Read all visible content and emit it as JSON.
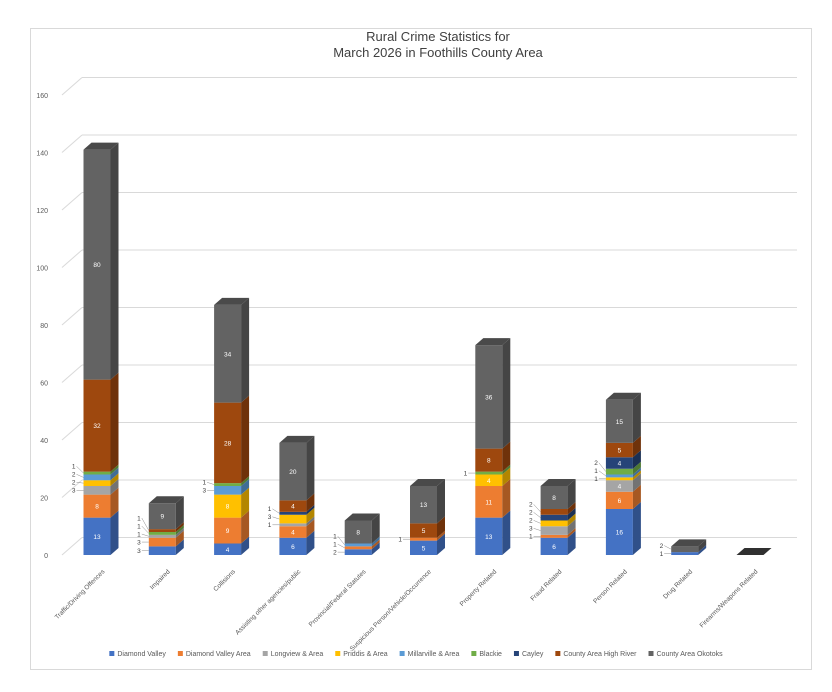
{
  "chart_data": {
    "type": "bar",
    "stacked": true,
    "title": "Rural Crime Statistics for March 2026 in Foothills County Area",
    "title_lines": [
      "Rural Crime Statistics for",
      "March 2026 in Foothills County Area"
    ],
    "xlabel": "",
    "ylabel": "",
    "ylim": [
      0,
      160
    ],
    "yticks": [
      0,
      20,
      40,
      60,
      80,
      100,
      120,
      140,
      160
    ],
    "grid": true,
    "legend_position": "bottom",
    "categories": [
      "Traffic/Driving Offences",
      "Impaired",
      "Collisions",
      "Assisting other agencies/public",
      "Provincial/Federal Statutes",
      "Suspicious Person/Vehicle/Occurrence",
      "Property Related",
      "Fraud Related",
      "Person Related",
      "Drug Related",
      "Firearms/Weapons Related"
    ],
    "series": [
      {
        "name": "Diamond Valley",
        "color": "#4472c4",
        "values": [
          13,
          3,
          4,
          6,
          2,
          5,
          13,
          6,
          16,
          1,
          0
        ]
      },
      {
        "name": "Diamond Valley Area",
        "color": "#ed7d31",
        "values": [
          8,
          3,
          9,
          4,
          1,
          1,
          11,
          1,
          6,
          0,
          0
        ]
      },
      {
        "name": "Longview & Area",
        "color": "#a5a5a5",
        "values": [
          3,
          1,
          0,
          1,
          0,
          0,
          0,
          3,
          4,
          0,
          0
        ]
      },
      {
        "name": "Priddis & Area",
        "color": "#ffc000",
        "values": [
          2,
          0,
          8,
          3,
          0,
          0,
          4,
          2,
          1,
          0,
          0
        ]
      },
      {
        "name": "Millarville & Area",
        "color": "#5b9bd5",
        "values": [
          2,
          0,
          3,
          0,
          1,
          0,
          0,
          0,
          1,
          0,
          0
        ]
      },
      {
        "name": "Blackie",
        "color": "#70ad47",
        "values": [
          1,
          1,
          1,
          0,
          0,
          0,
          1,
          0,
          2,
          0,
          0
        ]
      },
      {
        "name": "Cayley",
        "color": "#264478",
        "values": [
          0,
          0,
          0,
          1,
          0,
          0,
          0,
          2,
          4,
          0,
          0
        ]
      },
      {
        "name": "County Area High River",
        "color": "#9e480e",
        "values": [
          32,
          1,
          28,
          4,
          0,
          5,
          8,
          2,
          5,
          0,
          0
        ]
      },
      {
        "name": "County Area Okotoks",
        "color": "#636363",
        "values": [
          80,
          9,
          34,
          20,
          8,
          13,
          36,
          8,
          15,
          2,
          0
        ]
      }
    ]
  }
}
